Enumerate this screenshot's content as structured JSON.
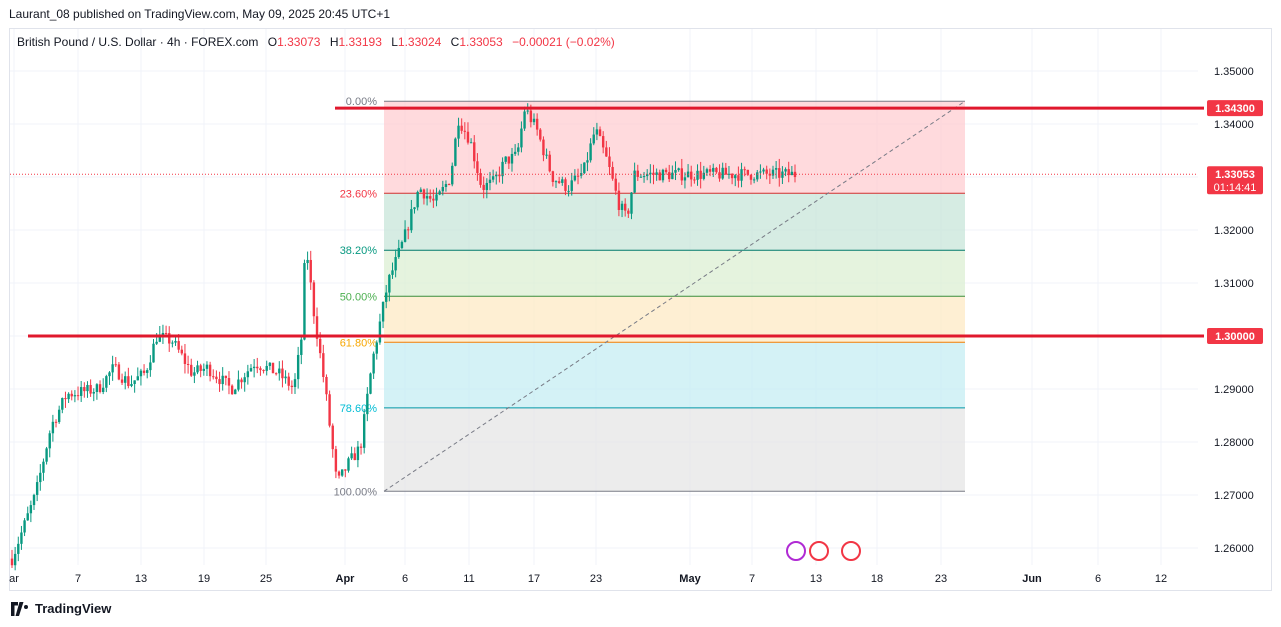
{
  "header": {
    "published_text": "Laurant_08 published on TradingView.com, May 09, 2025 20:45 UTC+1"
  },
  "legend": {
    "symbol": "British Pound / U.S. Dollar · 4h · FOREX.com",
    "open_label": "O",
    "open": "1.33073",
    "high_label": "H",
    "high": "1.33193",
    "low_label": "L",
    "low": "1.33024",
    "close_label": "C",
    "close": "1.33053",
    "change": "−0.00021 (−0.02%)"
  },
  "footer": {
    "brand": "TradingView"
  },
  "colors": {
    "up": "#089981",
    "down": "#f23645",
    "line": "#e0182d",
    "fib_0_236": "#ffcdd2",
    "fib_236_382": "#c8e6d9",
    "fib_382_5": "#dcefd3",
    "fib_5_618": "#fde9c4",
    "fib_618_786": "#c6eef3",
    "fib_786_1": "#e6e6e6"
  },
  "chart_data": {
    "type": "candlestick",
    "title": "British Pound / U.S. Dollar · 4h · FOREX.com",
    "y_ticks": [
      "1.35000",
      "1.34000",
      "1.33000",
      "1.32000",
      "1.31000",
      "1.30000",
      "1.29000",
      "1.28000",
      "1.27000",
      "1.26000"
    ],
    "ylim": [
      1.2542,
      1.3557
    ],
    "x_ticks": [
      "ar",
      "7",
      "13",
      "19",
      "25",
      "Apr",
      "6",
      "11",
      "17",
      "23",
      "May",
      "7",
      "13",
      "18",
      "23",
      "Jun",
      "6",
      "12"
    ],
    "price_labels": [
      {
        "value": "1.34300",
        "note": "horizontal level"
      },
      {
        "value": "1.33053",
        "note": "last price",
        "countdown": "01:14:41"
      },
      {
        "value": "1.30000",
        "note": "horizontal level"
      }
    ],
    "horizontal_levels": [
      1.343,
      1.3
    ],
    "fibonacci": {
      "from": 1.2707,
      "to": 1.3443,
      "levels": [
        {
          "label": "0.00%",
          "ratio": 0.0
        },
        {
          "label": "23.60%",
          "ratio": 0.236
        },
        {
          "label": "38.20%",
          "ratio": 0.382
        },
        {
          "label": "50.00%",
          "ratio": 0.5
        },
        {
          "label": "61.80%",
          "ratio": 0.618
        },
        {
          "label": "78.60%",
          "ratio": 0.786
        },
        {
          "label": "100.00%",
          "ratio": 1.0
        }
      ]
    },
    "price_path": [
      {
        "x": 0.0,
        "y": 1.258
      },
      {
        "x": 0.03,
        "y": 1.27
      },
      {
        "x": 0.05,
        "y": 1.283
      },
      {
        "x": 0.07,
        "y": 1.289
      },
      {
        "x": 0.11,
        "y": 1.29
      },
      {
        "x": 0.13,
        "y": 1.294
      },
      {
        "x": 0.15,
        "y": 1.291
      },
      {
        "x": 0.17,
        "y": 1.293
      },
      {
        "x": 0.185,
        "y": 1.3
      },
      {
        "x": 0.205,
        "y": 1.299
      },
      {
        "x": 0.23,
        "y": 1.293
      },
      {
        "x": 0.25,
        "y": 1.294
      },
      {
        "x": 0.28,
        "y": 1.29
      },
      {
        "x": 0.31,
        "y": 1.295
      },
      {
        "x": 0.34,
        "y": 1.293
      },
      {
        "x": 0.36,
        "y": 1.29
      },
      {
        "x": 0.37,
        "y": 1.3
      },
      {
        "x": 0.375,
        "y": 1.318
      },
      {
        "x": 0.385,
        "y": 1.305
      },
      {
        "x": 0.4,
        "y": 1.29
      },
      {
        "x": 0.415,
        "y": 1.272
      },
      {
        "x": 0.43,
        "y": 1.276
      },
      {
        "x": 0.445,
        "y": 1.279
      },
      {
        "x": 0.46,
        "y": 1.295
      },
      {
        "x": 0.48,
        "y": 1.31
      },
      {
        "x": 0.5,
        "y": 1.318
      },
      {
        "x": 0.52,
        "y": 1.328
      },
      {
        "x": 0.54,
        "y": 1.325
      },
      {
        "x": 0.56,
        "y": 1.33
      },
      {
        "x": 0.57,
        "y": 1.341
      },
      {
        "x": 0.585,
        "y": 1.337
      },
      {
        "x": 0.6,
        "y": 1.328
      },
      {
        "x": 0.615,
        "y": 1.329
      },
      {
        "x": 0.63,
        "y": 1.333
      },
      {
        "x": 0.645,
        "y": 1.334
      },
      {
        "x": 0.655,
        "y": 1.343
      },
      {
        "x": 0.67,
        "y": 1.339
      },
      {
        "x": 0.69,
        "y": 1.33
      },
      {
        "x": 0.71,
        "y": 1.328
      },
      {
        "x": 0.73,
        "y": 1.331
      },
      {
        "x": 0.745,
        "y": 1.339
      },
      {
        "x": 0.76,
        "y": 1.333
      },
      {
        "x": 0.775,
        "y": 1.325
      },
      {
        "x": 0.785,
        "y": 1.322
      },
      {
        "x": 0.795,
        "y": 1.3305
      }
    ]
  }
}
